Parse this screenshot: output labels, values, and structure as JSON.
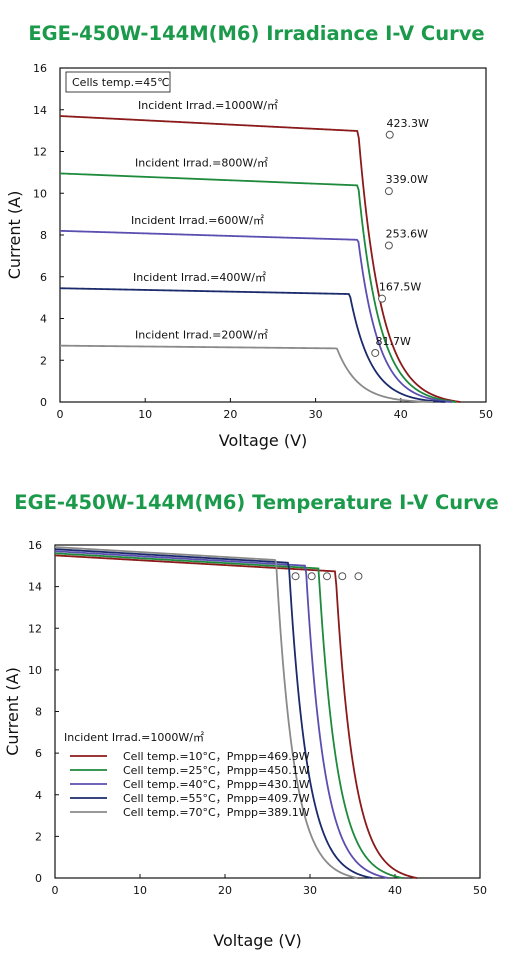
{
  "colors": {
    "title": "#1a9a4a",
    "red": "#8b1a1a",
    "green": "#1e8a3c",
    "purple": "#5a4fb0",
    "navy": "#1b2a6b",
    "gray": "#8a8a8a"
  },
  "chart_data": [
    {
      "type": "line",
      "title": "EGE-450W-144M(M6) Irradiance I-V Curve",
      "xlabel": "Voltage (V)",
      "ylabel": "Current (A)",
      "xlim": [
        0,
        50
      ],
      "ylim": [
        0,
        16
      ],
      "xticks": [
        "0",
        "10",
        "20",
        "30",
        "40",
        "50"
      ],
      "yticks": [
        "0",
        "2",
        "4",
        "6",
        "8",
        "10",
        "12",
        "14",
        "16"
      ],
      "grid": false,
      "note": "Cells temp.=45℃",
      "series": [
        {
          "name": "Incident Irrad.=1000W/㎡",
          "color": "red",
          "isc": 13.7,
          "voc": 47.0,
          "knee_v": 35.0,
          "mpp": [
            38.7,
            12.8
          ],
          "mpp_label": "423.3W"
        },
        {
          "name": "Incident Irrad.=800W/㎡",
          "color": "green",
          "isc": 10.95,
          "voc": 46.5,
          "knee_v": 35.0,
          "mpp": [
            38.6,
            10.1
          ],
          "mpp_label": "339.0W"
        },
        {
          "name": "Incident Irrad.=600W/㎡",
          "color": "purple",
          "isc": 8.2,
          "voc": 46.0,
          "knee_v": 35.0,
          "mpp": [
            38.6,
            7.5
          ],
          "mpp_label": "253.6W"
        },
        {
          "name": "Incident Irrad.=400W/㎡",
          "color": "navy",
          "isc": 5.45,
          "voc": 45.2,
          "knee_v": 34.0,
          "mpp": [
            37.8,
            4.95
          ],
          "mpp_label": "167.5W"
        },
        {
          "name": "Incident Irrad.=200W/㎡",
          "color": "gray",
          "isc": 2.7,
          "voc": 43.8,
          "knee_v": 32.5,
          "mpp": [
            37.0,
            2.35
          ],
          "mpp_label": "81.7W"
        }
      ]
    },
    {
      "type": "line",
      "title": "EGE-450W-144M(M6) Temperature I-V Curve",
      "xlabel": "Voltage (V)",
      "ylabel": "Current (A)",
      "xlim": [
        0,
        50
      ],
      "ylim": [
        0,
        16
      ],
      "xticks": [
        "0",
        "10",
        "20",
        "30",
        "40",
        "50"
      ],
      "yticks": [
        "0",
        "2",
        "4",
        "6",
        "8",
        "10",
        "12",
        "14",
        "16"
      ],
      "grid": false,
      "legend_title": "Incident Irrad.=1000W/㎡",
      "legend_position": "bottom-left",
      "series": [
        {
          "name": "Cell temp.=10°C，Pmpp=469.9W",
          "color": "red",
          "isc": 15.5,
          "voc": 42.6,
          "knee_v": 33.0,
          "mpp": [
            35.7,
            14.5
          ]
        },
        {
          "name": "Cell temp.=25°C，Pmpp=450.1W",
          "color": "green",
          "isc": 15.6,
          "voc": 40.9,
          "knee_v": 31.0,
          "mpp": [
            33.8,
            14.5
          ]
        },
        {
          "name": "Cell temp.=40°C，Pmpp=430.1W",
          "color": "purple",
          "isc": 15.7,
          "voc": 39.2,
          "knee_v": 29.5,
          "mpp": [
            32.0,
            14.5
          ]
        },
        {
          "name": "Cell temp.=55°C，Pmpp=409.7W",
          "color": "navy",
          "isc": 15.8,
          "voc": 37.3,
          "knee_v": 27.5,
          "mpp": [
            30.2,
            14.5
          ]
        },
        {
          "name": "Cell temp.=70°C，Pmpp=389.1W",
          "color": "gray",
          "isc": 15.9,
          "voc": 35.6,
          "knee_v": 26.0,
          "mpp": [
            28.3,
            14.5
          ]
        }
      ]
    }
  ]
}
